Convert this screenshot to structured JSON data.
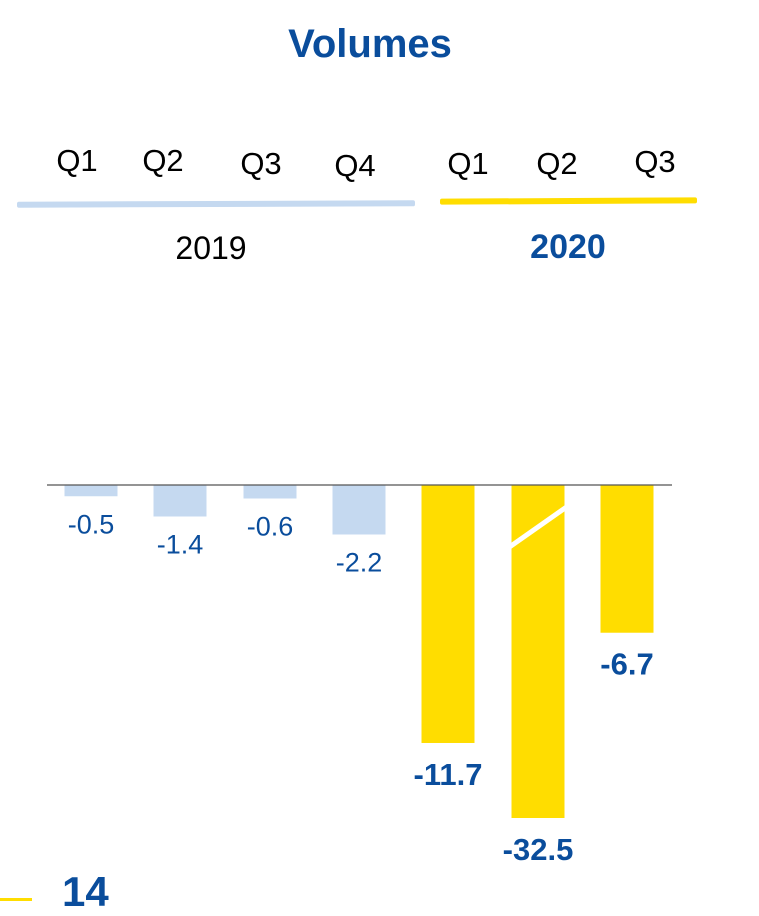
{
  "chart_data": {
    "type": "bar",
    "title": "Volumes",
    "categories": [
      "Q1",
      "Q2",
      "Q3",
      "Q4",
      "Q1",
      "Q2",
      "Q3"
    ],
    "groups": [
      {
        "label": "2019",
        "categories": [
          "Q1",
          "Q2",
          "Q3",
          "Q4"
        ],
        "color": "#c5d9f0"
      },
      {
        "label": "2020",
        "categories": [
          "Q1",
          "Q2",
          "Q3"
        ],
        "color": "#ffdd00"
      }
    ],
    "values": [
      -0.5,
      -1.4,
      -0.6,
      -2.2,
      -11.7,
      -32.5,
      -6.7
    ],
    "value_labels": [
      "-0.5",
      "-1.4",
      "-0.6",
      "-2.2",
      "-11.7",
      "-32.5",
      "-6.7"
    ],
    "broken_axis_bar_index": 5,
    "colors": {
      "bar_2019": "#c5d9f0",
      "bar_2020": "#ffdd00",
      "label_color": "#0a4d9c",
      "axis": "#555555"
    },
    "grid": false
  },
  "footer": {
    "text": "14"
  }
}
